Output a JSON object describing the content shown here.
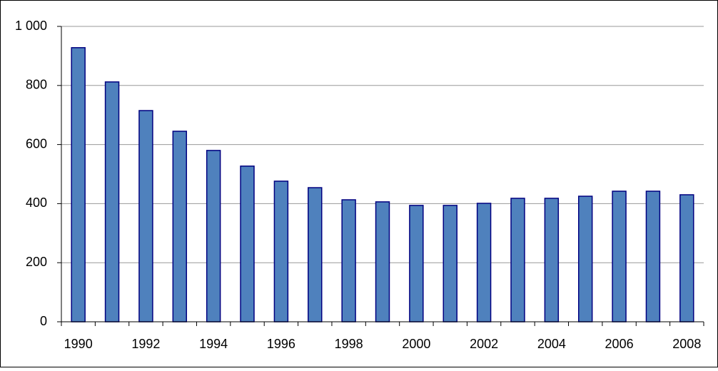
{
  "chart_data": {
    "type": "bar",
    "categories": [
      "1990",
      null,
      "1992",
      null,
      "1994",
      null,
      "1996",
      null,
      "1998",
      null,
      "2000",
      null,
      "2002",
      null,
      "2004",
      null,
      "2006",
      null,
      "2008"
    ],
    "values": [
      928,
      812,
      715,
      645,
      580,
      527,
      476,
      454,
      413,
      406,
      394,
      394,
      401,
      418,
      418,
      425,
      442,
      442,
      430
    ],
    "color": "#4f81bd",
    "ylim": [
      0,
      1000
    ],
    "yticks": [
      0,
      200,
      400,
      600,
      800,
      {
        "value": 1000,
        "label": "1 000"
      }
    ],
    "grid": true
  }
}
